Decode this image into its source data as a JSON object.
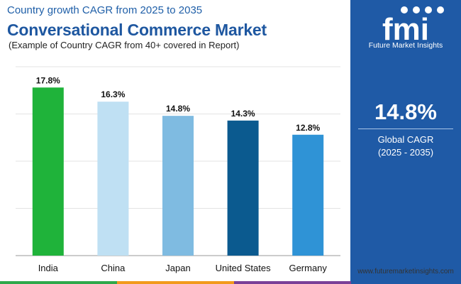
{
  "header": {
    "subtitle": "Country growth CAGR from 2025 to 2035",
    "title": "Conversational Commerce Market",
    "note": "(Example of Country CAGR from 40+ covered in Report)"
  },
  "sidebar": {
    "logo_text": "fmi",
    "brand": "Future Market Insights",
    "kpi_value": "14.8%",
    "kpi_label": "Global CAGR",
    "kpi_period": "(2025 - 2035)",
    "background": "#1f5aa6"
  },
  "footer": {
    "url": "www.futuremarketinsights.com",
    "stripe_colors": [
      "#2ea84a",
      "#f29a1c",
      "#7a3f98",
      "#1f5aa6"
    ]
  },
  "chart_data": {
    "type": "bar",
    "categories": [
      "India",
      "China",
      "Japan",
      "United States",
      "Germany"
    ],
    "values": [
      17.8,
      16.3,
      14.8,
      14.3,
      12.8
    ],
    "value_labels": [
      "17.8%",
      "16.3%",
      "14.8%",
      "14.3%",
      "12.8%"
    ],
    "colors": [
      "#1fb33a",
      "#bfe0f3",
      "#7fbbe1",
      "#0b5a8f",
      "#2f93d6"
    ],
    "ylim": [
      0,
      20
    ],
    "grid": true,
    "title": "",
    "xlabel": "",
    "ylabel": ""
  }
}
